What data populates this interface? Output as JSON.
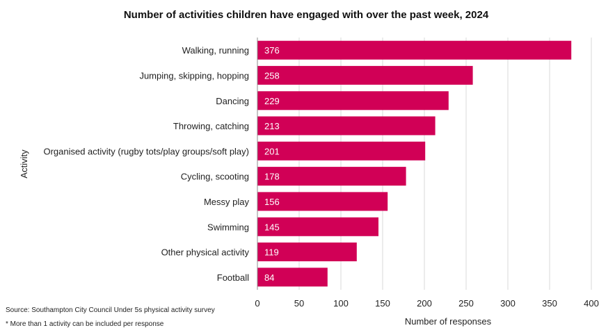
{
  "chart_data": {
    "type": "bar",
    "orientation": "horizontal",
    "title": "Number of activities children have engaged with over the past week, 2024",
    "xlabel": "Number  of responses",
    "ylabel": "Activity",
    "categories": [
      "Walking, running",
      "Jumping, skipping, hopping",
      "Dancing",
      "Throwing, catching",
      "Organised activity (rugby tots/play groups/soft play)",
      "Cycling, scooting",
      "Messy play",
      "Swimming",
      "Other physical activity",
      "Football"
    ],
    "values": [
      376,
      258,
      229,
      213,
      201,
      178,
      156,
      145,
      119,
      84
    ],
    "xlim": [
      0,
      400
    ],
    "xticks": [
      0,
      50,
      100,
      150,
      200,
      250,
      300,
      350,
      400
    ],
    "grid": "vertical",
    "bar_color": "#d10056",
    "grid_color": "#d9d9d9",
    "data_labels": "inside-start"
  },
  "notes": {
    "source": "Source: Southampton City Council Under 5s physical activity survey",
    "footnote": "* More than 1 activity can be included per response"
  }
}
